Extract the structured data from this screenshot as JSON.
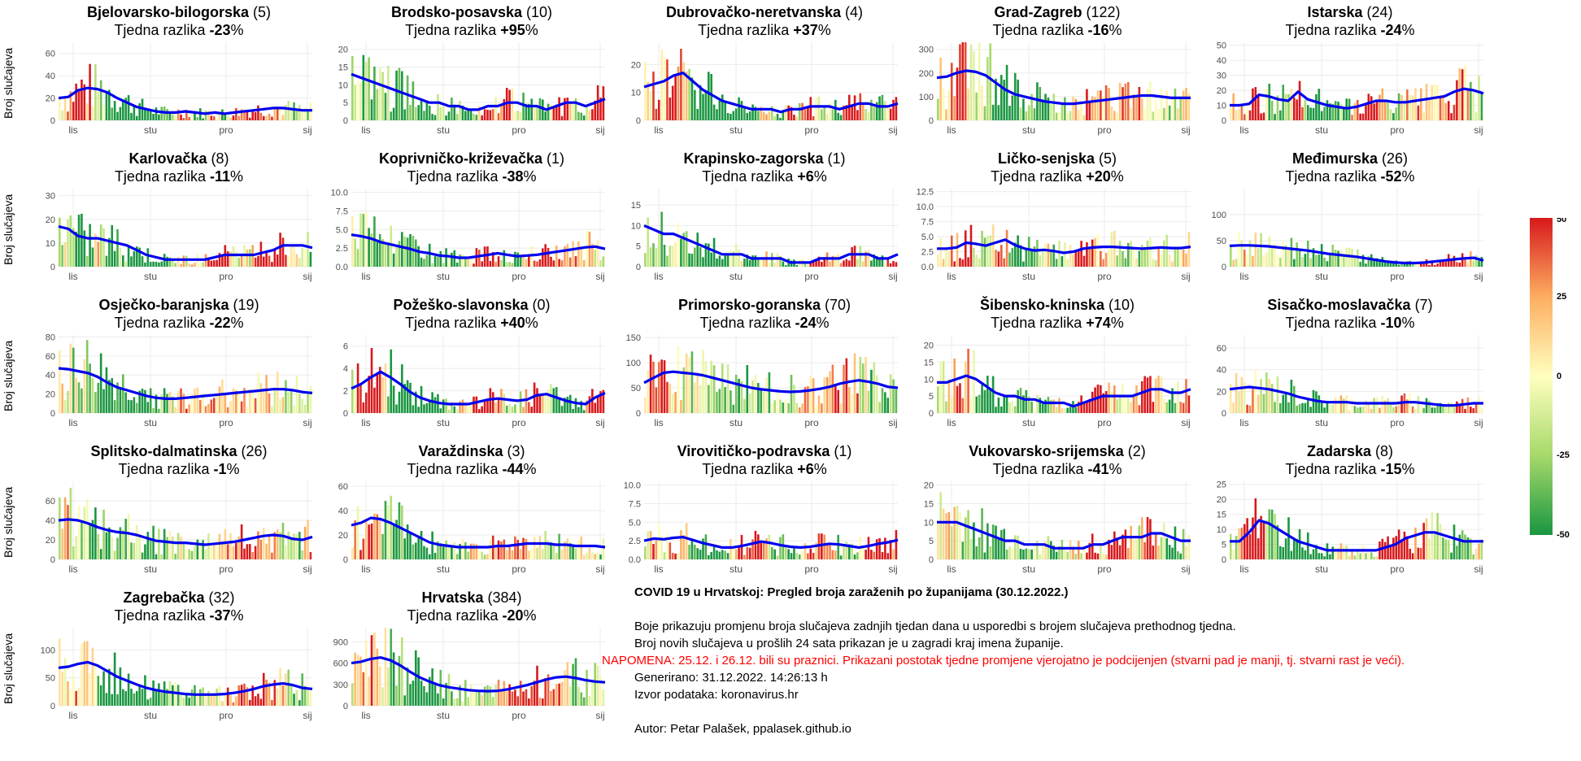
{
  "y_axis_label": "Broj slučajeva",
  "x_ticks": [
    "lis",
    "stu",
    "pro",
    "sij"
  ],
  "weekly_label": "Tjedna razlika",
  "colorbar": {
    "ticks": [
      "50",
      "25",
      "0",
      "-25",
      "-50"
    ],
    "low_color": "#1a9641",
    "mid_color": "#ffffbf",
    "high_color": "#d7191c"
  },
  "line_color": "#0000ee",
  "notes": {
    "title": "COVID 19 u Hrvatskoj: Pregled broja zaraženih po županijama (30.12.2022.)",
    "line1": "Boje prikazuju promjenu broja slučajeva zadnjih tjedan dana u usporedbi s brojem slučajeva prethodnog tjedna.",
    "line2": "Broj novih slučajeva u prošlih 24 sata prikazan je u zagradi kraj imena županije.",
    "warning": "NAPOMENA: 25.12. i 26.12. bili su praznici. Prikazani postotak tjedne promjene vjerojatno je podcijenjen (stvarni pad je manji, tj. stvarni rast je veći).",
    "generated": "Generirano: 31.12.2022. 14:26:13 h",
    "source": "Izvor podataka: koronavirus.hr",
    "author": "Autor: Petar Palašek, ppalasek.github.io"
  },
  "chart_data": [
    {
      "type": "bar",
      "name": "Bjelovarsko-bilogorska",
      "new_cases": "(5)",
      "weekly_change": "-23",
      "ylim": [
        0,
        70
      ],
      "yticks": [
        "0",
        "20",
        "40",
        "60"
      ],
      "trend": [
        20,
        21,
        27,
        29,
        28,
        25,
        20,
        16,
        12,
        10,
        8,
        7,
        7,
        8,
        7,
        6,
        7,
        6,
        7,
        8,
        9,
        10,
        11,
        11,
        10,
        9,
        9
      ]
    },
    {
      "type": "bar",
      "name": "Brodsko-posavska",
      "new_cases": "(10)",
      "weekly_change": "+95",
      "ylim": [
        0,
        22
      ],
      "yticks": [
        "0",
        "5",
        "10",
        "15",
        "20"
      ],
      "trend": [
        13,
        12,
        11,
        10,
        9,
        8,
        7,
        6,
        5,
        5,
        4,
        4,
        3,
        3,
        4,
        4,
        5,
        5,
        4,
        4,
        3,
        4,
        5,
        5,
        4,
        5,
        6
      ]
    },
    {
      "type": "bar",
      "name": "Dubrovačko-neretvanska",
      "new_cases": "(4)",
      "weekly_change": "+37",
      "ylim": [
        0,
        28
      ],
      "yticks": [
        "0",
        "10",
        "20"
      ],
      "trend": [
        12,
        13,
        14,
        16,
        17,
        14,
        11,
        9,
        7,
        6,
        5,
        4,
        4,
        4,
        3,
        4,
        4,
        5,
        5,
        5,
        4,
        5,
        6,
        6,
        5,
        5,
        6
      ]
    },
    {
      "type": "bar",
      "name": "Grad-Zagreb",
      "new_cases": "(122)",
      "weekly_change": "-16",
      "ylim": [
        0,
        330
      ],
      "yticks": [
        "0",
        "100",
        "200",
        "300"
      ],
      "trend": [
        180,
        185,
        200,
        210,
        205,
        190,
        160,
        130,
        110,
        100,
        90,
        80,
        75,
        70,
        70,
        75,
        80,
        85,
        90,
        95,
        100,
        105,
        105,
        100,
        95,
        95,
        95
      ]
    },
    {
      "type": "bar",
      "name": "Istarska",
      "new_cases": "(24)",
      "weekly_change": "-24",
      "ylim": [
        0,
        52
      ],
      "yticks": [
        "0",
        "10",
        "20",
        "30",
        "40",
        "50"
      ],
      "trend": [
        10,
        10,
        11,
        17,
        16,
        14,
        13,
        19,
        14,
        12,
        10,
        9,
        8,
        9,
        11,
        13,
        13,
        12,
        12,
        13,
        14,
        15,
        16,
        19,
        21,
        20,
        18
      ]
    },
    {
      "type": "bar",
      "name": "Karlovačka",
      "new_cases": "(8)",
      "weekly_change": "-11",
      "ylim": [
        0,
        33
      ],
      "yticks": [
        "0",
        "10",
        "20",
        "30"
      ],
      "trend": [
        17,
        16,
        13,
        12,
        12,
        11,
        10,
        9,
        7,
        5,
        4,
        3,
        3,
        3,
        3,
        3,
        4,
        5,
        5,
        5,
        5,
        6,
        7,
        9,
        9,
        9,
        8
      ]
    },
    {
      "type": "bar",
      "name": "Koprivničko-križevačka",
      "new_cases": "(1)",
      "weekly_change": "-38",
      "ylim": [
        0,
        10.5
      ],
      "yticks": [
        "0.0",
        "2.5",
        "5.0",
        "7.5",
        "10.0"
      ],
      "trend": [
        4.3,
        4.1,
        3.8,
        3.3,
        3.0,
        2.7,
        2.4,
        2.0,
        1.8,
        1.5,
        1.4,
        1.2,
        1.2,
        1.4,
        1.6,
        1.8,
        1.6,
        1.4,
        1.5,
        1.6,
        1.8,
        2.0,
        2.2,
        2.4,
        2.6,
        2.7,
        2.4
      ]
    },
    {
      "type": "bar",
      "name": "Krapinsko-zagorska",
      "new_cases": "(1)",
      "weekly_change": "+6",
      "ylim": [
        0,
        19
      ],
      "yticks": [
        "0",
        "5",
        "10",
        "15"
      ],
      "trend": [
        10,
        9,
        8,
        8,
        7,
        6,
        5,
        4,
        3,
        3,
        3,
        2,
        2,
        2,
        2,
        1,
        1,
        1,
        2,
        2,
        2,
        3,
        3,
        3,
        2,
        2,
        3
      ]
    },
    {
      "type": "bar",
      "name": "Ličko-senjska",
      "new_cases": "(5)",
      "weekly_change": "+20",
      "ylim": [
        0,
        13
      ],
      "yticks": [
        "0.0",
        "2.5",
        "5.0",
        "7.5",
        "10.0",
        "12.5"
      ],
      "trend": [
        3,
        3,
        3.2,
        4,
        3.8,
        3.5,
        4,
        4.5,
        3.6,
        3,
        2.7,
        2.8,
        2.6,
        2.3,
        2.5,
        3,
        3.2,
        3.3,
        3.3,
        3.2,
        3.1,
        3.0,
        3.1,
        3.2,
        3.1,
        3.1,
        3.3
      ]
    },
    {
      "type": "bar",
      "name": "Međimurska",
      "new_cases": "(26)",
      "weekly_change": "-52",
      "ylim": [
        0,
        150
      ],
      "yticks": [
        "0",
        "50",
        "100"
      ],
      "trend": [
        40,
        41,
        41,
        40,
        39,
        37,
        35,
        33,
        31,
        28,
        25,
        23,
        21,
        19,
        16,
        13,
        10,
        8,
        7,
        7,
        8,
        10,
        12,
        14,
        16,
        17,
        12
      ]
    },
    {
      "type": "bar",
      "name": "Osječko-baranjska",
      "new_cases": "(19)",
      "weekly_change": "-22",
      "ylim": [
        0,
        82
      ],
      "yticks": [
        "0",
        "20",
        "40",
        "60",
        "80"
      ],
      "trend": [
        47,
        46,
        44,
        42,
        38,
        32,
        27,
        24,
        21,
        18,
        16,
        15,
        15,
        16,
        17,
        18,
        19,
        20,
        21,
        22,
        23,
        24,
        25,
        25,
        24,
        22,
        21
      ]
    },
    {
      "type": "bar",
      "name": "Požeško-slavonska",
      "new_cases": "(0)",
      "weekly_change": "+40",
      "ylim": [
        0,
        7
      ],
      "yticks": [
        "0",
        "2",
        "4",
        "6"
      ],
      "trend": [
        2.2,
        2.6,
        3.2,
        3.7,
        3.2,
        2.6,
        1.9,
        1.4,
        1.1,
        0.9,
        0.8,
        0.8,
        0.8,
        1.0,
        1.2,
        1.3,
        1.2,
        1.1,
        1.2,
        1.6,
        1.7,
        1.4,
        1.1,
        0.9,
        0.8,
        1.4,
        1.8
      ]
    },
    {
      "type": "bar",
      "name": "Primorsko-goranska",
      "new_cases": "(70)",
      "weekly_change": "-24",
      "ylim": [
        0,
        155
      ],
      "yticks": [
        "0",
        "50",
        "100",
        "150"
      ],
      "trend": [
        60,
        70,
        80,
        82,
        80,
        78,
        75,
        70,
        65,
        60,
        55,
        50,
        47,
        45,
        43,
        42,
        43,
        45,
        48,
        52,
        58,
        62,
        65,
        62,
        58,
        52,
        50
      ]
    },
    {
      "type": "bar",
      "name": "Šibensko-kninska",
      "new_cases": "(10)",
      "weekly_change": "+74",
      "ylim": [
        0,
        23
      ],
      "yticks": [
        "0",
        "5",
        "10",
        "15",
        "20"
      ],
      "trend": [
        9,
        9,
        10,
        11,
        10,
        8,
        6,
        5,
        5,
        4,
        4,
        3,
        3,
        3,
        2,
        3,
        4,
        5,
        5,
        5,
        5,
        6,
        7,
        7,
        6,
        6,
        7
      ]
    },
    {
      "type": "bar",
      "name": "Sisačko-moslavačka",
      "new_cases": "(7)",
      "weekly_change": "-10",
      "ylim": [
        0,
        72
      ],
      "yticks": [
        "0",
        "20",
        "40",
        "60"
      ],
      "trend": [
        22,
        23,
        24,
        23,
        22,
        20,
        18,
        15,
        13,
        11,
        10,
        10,
        10,
        9,
        9,
        9,
        9,
        9,
        10,
        10,
        9,
        8,
        7,
        7,
        8,
        9,
        9
      ]
    },
    {
      "type": "bar",
      "name": "Splitsko-dalmatinska",
      "new_cases": "(26)",
      "weekly_change": "-1",
      "ylim": [
        0,
        80
      ],
      "yticks": [
        "0",
        "20",
        "40",
        "60"
      ],
      "trend": [
        40,
        41,
        40,
        37,
        33,
        30,
        28,
        27,
        25,
        22,
        19,
        18,
        17,
        17,
        16,
        15,
        16,
        17,
        18,
        20,
        22,
        24,
        25,
        24,
        21,
        20,
        23
      ]
    },
    {
      "type": "bar",
      "name": "Varaždinska",
      "new_cases": "(3)",
      "weekly_change": "-44",
      "ylim": [
        0,
        64
      ],
      "yticks": [
        "0",
        "20",
        "40",
        "60"
      ],
      "trend": [
        28,
        30,
        34,
        33,
        30,
        26,
        22,
        18,
        14,
        12,
        11,
        10,
        10,
        10,
        10,
        11,
        11,
        12,
        13,
        13,
        13,
        12,
        12,
        11,
        11,
        11,
        10
      ]
    },
    {
      "type": "bar",
      "name": "Virovitičko-podravska",
      "new_cases": "(1)",
      "weekly_change": "+6",
      "ylim": [
        0,
        10.5
      ],
      "yticks": [
        "0.0",
        "2.5",
        "5.0",
        "7.5",
        "10.0"
      ],
      "trend": [
        2.5,
        2.8,
        2.7,
        2.9,
        3.0,
        2.6,
        2.2,
        1.9,
        1.6,
        1.6,
        1.8,
        2.1,
        2.4,
        2.2,
        1.9,
        1.7,
        1.6,
        1.7,
        1.9,
        2.1,
        2.0,
        1.8,
        1.6,
        1.8,
        2.1,
        2.3,
        2.6
      ]
    },
    {
      "type": "bar",
      "name": "Vukovarsko-srijemska",
      "new_cases": "(2)",
      "weekly_change": "-41",
      "ylim": [
        0,
        21
      ],
      "yticks": [
        "0",
        "5",
        "10",
        "15",
        "20"
      ],
      "trend": [
        10,
        10,
        10,
        9,
        8,
        7,
        6,
        5,
        5,
        4,
        4,
        4,
        3,
        3,
        3,
        3,
        4,
        4,
        5,
        6,
        6,
        6,
        7,
        7,
        6,
        5,
        5
      ]
    },
    {
      "type": "bar",
      "name": "Zadarska",
      "new_cases": "(8)",
      "weekly_change": "-15",
      "ylim": [
        0,
        26
      ],
      "yticks": [
        "0",
        "5",
        "10",
        "15",
        "20",
        "25"
      ],
      "trend": [
        6,
        6,
        9,
        13,
        12,
        10,
        8,
        6,
        5,
        4,
        3,
        3,
        3,
        3,
        3,
        3,
        4,
        5,
        7,
        8,
        9,
        9,
        8,
        7,
        6,
        6,
        6
      ]
    },
    {
      "type": "bar",
      "name": "Zagrebačka",
      "new_cases": "(32)",
      "weekly_change": "-37",
      "ylim": [
        0,
        140
      ],
      "yticks": [
        "0",
        "50",
        "100"
      ],
      "trend": [
        68,
        70,
        75,
        78,
        72,
        62,
        52,
        45,
        38,
        32,
        28,
        25,
        23,
        21,
        20,
        20,
        20,
        21,
        23,
        26,
        30,
        35,
        38,
        40,
        37,
        32,
        30
      ]
    },
    {
      "type": "bar",
      "name": "Hrvatska",
      "new_cases": "(384)",
      "weekly_change": "-20",
      "ylim": [
        0,
        1100
      ],
      "yticks": [
        "0",
        "300",
        "600",
        "900"
      ],
      "trend": [
        600,
        620,
        660,
        680,
        640,
        570,
        480,
        400,
        340,
        290,
        260,
        240,
        220,
        210,
        205,
        210,
        230,
        260,
        290,
        330,
        370,
        400,
        410,
        390,
        360,
        340,
        330
      ]
    }
  ]
}
